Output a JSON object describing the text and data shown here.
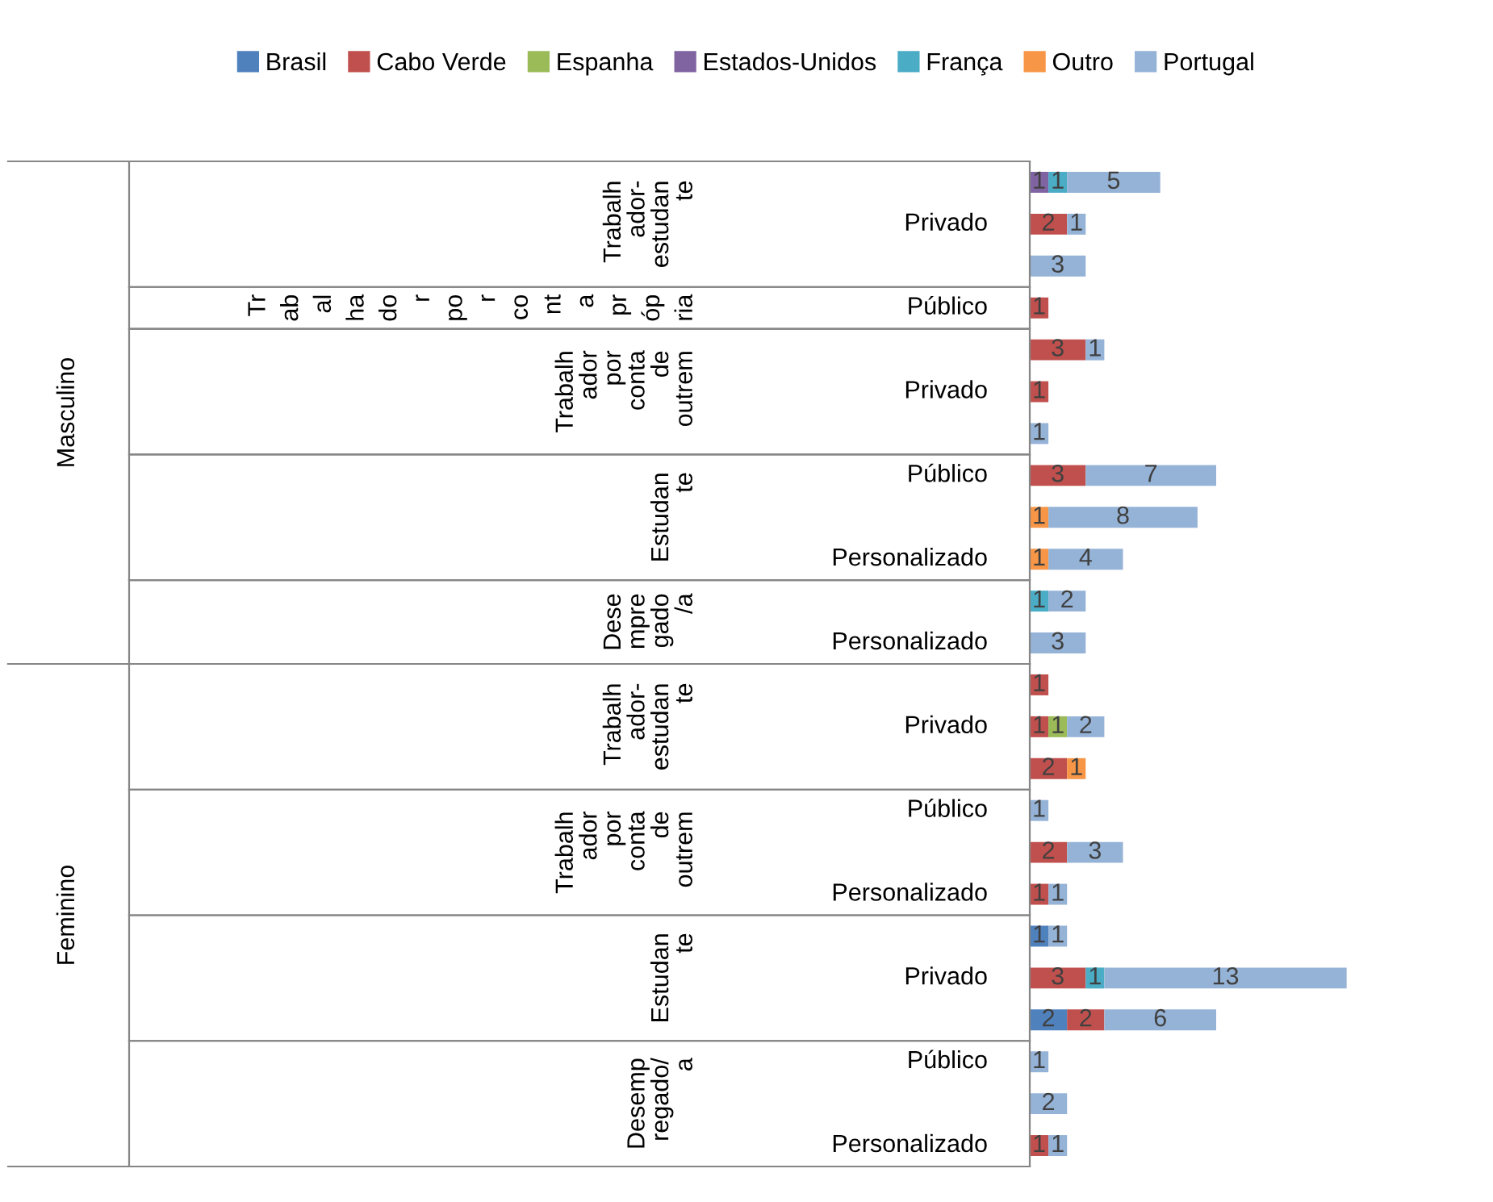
{
  "chart_data": {
    "type": "bar",
    "orientation": "horizontal",
    "stacked": true,
    "data_labels": true,
    "legend": "top",
    "categories": [
      null,
      "Privado",
      null,
      "Público",
      null,
      "Privado",
      null,
      "Público",
      null,
      "Personalizado",
      null,
      "Personalizado",
      null,
      "Privado",
      null,
      "Público",
      null,
      "Personalizado",
      null,
      "Privado",
      null,
      "Público",
      null,
      "Personalizado"
    ],
    "series": [
      {
        "name": "Brasil",
        "color": "#4f81bd",
        "values": [
          null,
          null,
          null,
          null,
          null,
          null,
          null,
          null,
          null,
          null,
          null,
          null,
          null,
          null,
          null,
          null,
          null,
          null,
          1,
          null,
          2,
          null,
          null,
          null
        ]
      },
      {
        "name": "Cabo Verde",
        "color": "#c0504d",
        "values": [
          null,
          2,
          null,
          1,
          3,
          1,
          null,
          3,
          null,
          null,
          null,
          null,
          1,
          1,
          2,
          null,
          2,
          1,
          null,
          3,
          2,
          null,
          null,
          1
        ]
      },
      {
        "name": "Espanha",
        "color": "#9bbb59",
        "values": [
          null,
          null,
          null,
          null,
          null,
          null,
          null,
          null,
          null,
          null,
          null,
          null,
          null,
          1,
          null,
          null,
          null,
          null,
          null,
          null,
          null,
          null,
          null,
          null
        ]
      },
      {
        "name": "Estados-Unidos",
        "color": "#8064a2",
        "values": [
          1,
          null,
          null,
          null,
          null,
          null,
          null,
          null,
          null,
          null,
          null,
          null,
          null,
          null,
          null,
          null,
          null,
          null,
          null,
          null,
          null,
          null,
          null,
          null
        ]
      },
      {
        "name": "França",
        "color": "#4bacc6",
        "values": [
          1,
          null,
          null,
          null,
          null,
          null,
          null,
          null,
          null,
          null,
          1,
          null,
          null,
          null,
          null,
          null,
          null,
          null,
          null,
          1,
          null,
          null,
          null,
          null
        ]
      },
      {
        "name": "Outro",
        "color": "#f79646",
        "values": [
          null,
          null,
          null,
          null,
          null,
          null,
          null,
          null,
          1,
          1,
          null,
          null,
          null,
          null,
          1,
          null,
          null,
          null,
          null,
          null,
          null,
          null,
          null,
          null
        ]
      },
      {
        "name": "Portugal",
        "color": "#95b3d7",
        "values": [
          5,
          1,
          3,
          null,
          1,
          null,
          1,
          7,
          8,
          4,
          2,
          3,
          null,
          2,
          null,
          1,
          3,
          1,
          1,
          13,
          6,
          1,
          2,
          1
        ]
      }
    ],
    "annotations": [
      "Masculino",
      "Feminino",
      "Trabalh\nador-\nestudan\nte",
      "Tr\nab\nal\nha\ndo\nr\npo\nr\nco\nnt\na\npr\nóp\nria",
      "Trabalh\nador\npor\nconta\nde\noutrem",
      "Estudan\nte",
      "Dese\nmpre\ngado\n/a",
      "Trabalh\nador-\nestudan\nte",
      "Trabalh\nador\npor\nconta\nde\noutrem",
      "Estudan\nte",
      "Desemp\nregado/\na"
    ]
  }
}
